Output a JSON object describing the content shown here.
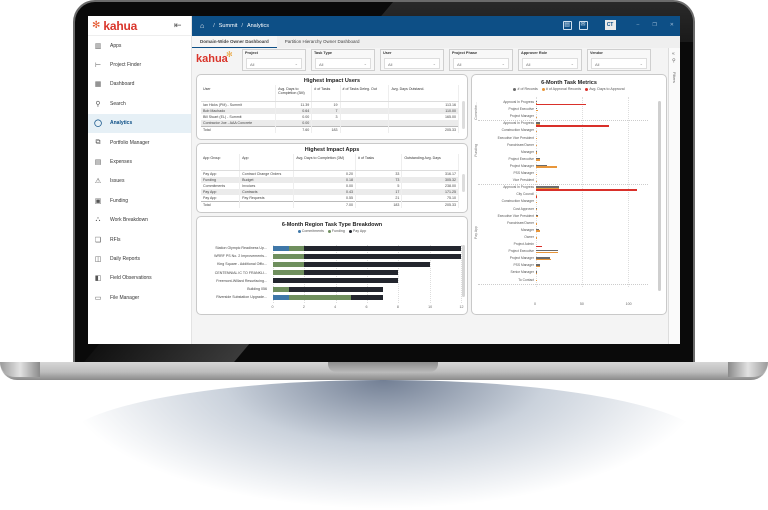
{
  "sidebar": {
    "logo": "kahua",
    "items": [
      {
        "label": "Apps",
        "icon": "apps-grid-icon",
        "glyph": "▥"
      },
      {
        "label": "Project Finder",
        "icon": "project-tree-icon",
        "glyph": "⊢"
      },
      {
        "label": "Dashboard",
        "icon": "dashboard-icon",
        "glyph": "▦"
      },
      {
        "label": "Search",
        "icon": "search-icon",
        "glyph": "⚲"
      },
      {
        "label": "Analytics",
        "icon": "analytics-ring-icon",
        "glyph": "◯",
        "active": true
      },
      {
        "label": "Portfolio Manager",
        "icon": "portfolio-icon",
        "glyph": "⧉"
      },
      {
        "label": "Expenses",
        "icon": "expenses-icon",
        "glyph": "▤"
      },
      {
        "label": "Issues",
        "icon": "warning-icon",
        "glyph": "⚠"
      },
      {
        "label": "Funding",
        "icon": "funding-icon",
        "glyph": "▣"
      },
      {
        "label": "Work Breakdown",
        "icon": "hierarchy-icon",
        "glyph": "⛬"
      },
      {
        "label": "RFIs",
        "icon": "chat-icon",
        "glyph": "❏"
      },
      {
        "label": "Daily Reports",
        "icon": "report-icon",
        "glyph": "◫"
      },
      {
        "label": "Field Observations",
        "icon": "clipboard-icon",
        "glyph": "◧"
      },
      {
        "label": "File Manager",
        "icon": "folder-icon",
        "glyph": "▭"
      }
    ]
  },
  "topbar": {
    "breadcrumb": [
      "Summit",
      "Analytics"
    ],
    "avatar": "CT",
    "color": "#0d4f86"
  },
  "tabs": [
    {
      "label": "Domain-Wide Owner Dashboard",
      "active": true
    },
    {
      "label": "Partition Hierarchy Owner Dashboard",
      "active": false
    }
  ],
  "filters": {
    "logo": "kahua",
    "slicers": [
      {
        "label": "Project",
        "value": "All"
      },
      {
        "label": "Task Type",
        "value": "All"
      },
      {
        "label": "User",
        "value": "All"
      },
      {
        "label": "Project Phase",
        "value": "All"
      },
      {
        "label": "Approver Role",
        "value": "All"
      },
      {
        "label": "Vendor",
        "value": "All"
      }
    ],
    "pane_label": "Filters"
  },
  "users_table": {
    "title": "Highest Impact Users",
    "columns": [
      "User",
      "Avg. Days to Completion (3M)",
      "# of Tasks",
      "# of Tasks Deleg. Out",
      "Avg. Days Outstand."
    ],
    "rows": [
      [
        "Ian Hicks (PM) - Summit",
        "11.39",
        "19",
        "",
        "113.16"
      ],
      [
        "Bob Machado",
        "0.64",
        "7",
        "",
        "110.00"
      ],
      [
        "Bill Stuart (EL) - Summit",
        "0.00",
        "3",
        "",
        "165.00"
      ],
      [
        "Contractor Joe - AAA Concrete",
        "0.00",
        "",
        "",
        ""
      ]
    ],
    "total": [
      "Total",
      "7.60",
      "183",
      "",
      "205.33"
    ]
  },
  "apps_table": {
    "title": "Highest Impact Apps",
    "columns": [
      "App Group",
      "App",
      "Avg. Days to Completion (3M)",
      "# of Tasks",
      "Outstanding Avg. Days"
    ],
    "rows": [
      [
        "Pay App",
        "Contract Change Orders",
        "0.20",
        "33",
        "316.17"
      ],
      [
        "Funding",
        "Budget",
        "0.18",
        "73",
        "305.32"
      ],
      [
        "Commitments",
        "Invoices",
        "0.00",
        "5",
        "238.00"
      ],
      [
        "Pay App",
        "Contracts",
        "0.43",
        "17",
        "171.25"
      ],
      [
        "Pay App",
        "Pay Requests",
        "0.55",
        "21",
        "75.10"
      ]
    ],
    "total": [
      "Total",
      "",
      "7.00",
      "183",
      "205.33"
    ]
  },
  "chart_data": [
    {
      "type": "bar",
      "orientation": "horizontal",
      "stacked": true,
      "title": "6-Month Region Task Type Breakdown",
      "categories": [
        "Station Olympic Readiness Up...",
        "WRRF PS No. 2 Improvements...",
        "King Square - Additional Offic...",
        "CENTENNIAL IC TO FRANKLI...",
        "Freemont-Willard Resurfacing...",
        "Building 056",
        "Riverside Substation Upgrade..."
      ],
      "series": [
        {
          "name": "Commitments",
          "color": "#3f77a8",
          "values": [
            1,
            0,
            0,
            0,
            0,
            0,
            1
          ]
        },
        {
          "name": "Funding",
          "color": "#6f8f5e",
          "values": [
            1,
            2,
            2,
            2,
            0,
            1,
            4
          ]
        },
        {
          "name": "Pay App",
          "color": "#23262e",
          "values": [
            10,
            10,
            8,
            6,
            8,
            6,
            2
          ]
        }
      ],
      "xticks": [
        "0",
        "2",
        "4",
        "6",
        "8",
        "10",
        "12"
      ],
      "xlim": [
        0,
        12
      ],
      "legend_position": "top"
    },
    {
      "type": "bar",
      "orientation": "horizontal",
      "title": "6-Month Task Metrics",
      "series_names": [
        "# of Records",
        "# of Approval Records",
        "Avg. Days to Approval"
      ],
      "series_colors": [
        "#6b6b6b",
        "#e8963a",
        "#d9302a"
      ],
      "groups": [
        {
          "name": "Commitm...",
          "rows": [
            {
              "label": "Approval In Progress",
              "values": [
                1,
                1,
                55
              ]
            },
            {
              "label": "Project Executive",
              "values": [
                1,
                2,
                0
              ]
            },
            {
              "label": "Project Manager",
              "values": [
                0,
                1,
                0
              ]
            }
          ]
        },
        {
          "name": "Funding",
          "rows": [
            {
              "label": "Approval In Progress",
              "values": [
                4,
                4,
                80
              ]
            },
            {
              "label": "Construction Manager",
              "values": [
                0,
                1,
                0
              ]
            },
            {
              "label": "Executive Vice President",
              "values": [
                0,
                1,
                0
              ]
            },
            {
              "label": "Franchisee/Owner",
              "values": [
                0,
                1,
                0
              ]
            },
            {
              "label": "Manager",
              "values": [
                1,
                1,
                0
              ]
            },
            {
              "label": "Project Executive",
              "values": [
                4,
                4,
                0
              ]
            },
            {
              "label": "Project Manager",
              "values": [
                12,
                23,
                0
              ]
            },
            {
              "label": "PSS Manager",
              "values": [
                0,
                1,
                0
              ]
            },
            {
              "label": "Vice President",
              "values": [
                0,
                1,
                0
              ]
            }
          ]
        },
        {
          "name": "Pay App",
          "rows": [
            {
              "label": "Approval In Progress",
              "values": [
                25,
                25,
                110
              ]
            },
            {
              "label": "City Council",
              "values": [
                0,
                1,
                1
              ]
            },
            {
              "label": "Construction Manager",
              "values": [
                0,
                1,
                0
              ]
            },
            {
              "label": "Cost Approver",
              "values": [
                1,
                1,
                0
              ]
            },
            {
              "label": "Executive Vice President",
              "values": [
                2,
                2,
                0
              ]
            },
            {
              "label": "Franchisee/Owner",
              "values": [
                0,
                1,
                0
              ]
            },
            {
              "label": "Manager",
              "values": [
                3,
                4,
                0
              ]
            },
            {
              "label": "Owner",
              "values": [
                0,
                1,
                0
              ]
            },
            {
              "label": "Project Admin",
              "values": [
                0,
                0,
                7
              ]
            },
            {
              "label": "Project Executive",
              "values": [
                24,
                24,
                0
              ]
            },
            {
              "label": "Project Manager",
              "values": [
                15,
                16,
                0
              ]
            },
            {
              "label": "PSS Manager",
              "values": [
                4,
                4,
                0
              ]
            },
            {
              "label": "Senior Manager",
              "values": [
                1,
                1,
                0
              ]
            },
            {
              "label": "To Contact",
              "values": [
                0,
                1,
                0
              ]
            }
          ]
        }
      ],
      "xticks": [
        "0",
        "50",
        "100"
      ],
      "xlim": [
        0,
        120
      ],
      "legend_position": "top"
    }
  ]
}
